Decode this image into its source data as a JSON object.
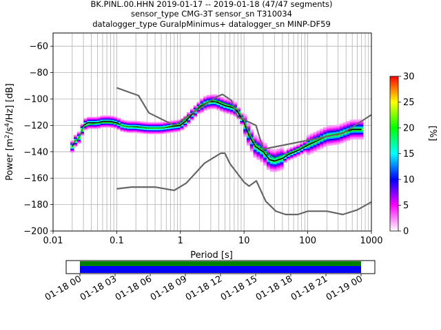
{
  "chart_data": {
    "type": "heatmap",
    "title": [
      "BK.PINL.00.HHN   2019-01-17 -- 2019-01-18  (47/47 segments)",
      "sensor_type CMG-3T sensor_sn T310034",
      "datalogger_type GuralpMinimus+ datalogger_sn MINP-DF59"
    ],
    "xlabel": "Period [s]",
    "ylabel_parts": [
      "Power [m",
      "2",
      "/s",
      "4",
      "/Hz] [dB]"
    ],
    "x_scale": "log",
    "xlim": [
      0.01,
      1000
    ],
    "ylim": [
      -200,
      -50
    ],
    "xticks": [
      {
        "v": 0.01,
        "label": "0.01"
      },
      {
        "v": 0.1,
        "label": "0.1"
      },
      {
        "v": 1,
        "label": "1"
      },
      {
        "v": 10,
        "label": "10"
      },
      {
        "v": 100,
        "label": "100"
      },
      {
        "v": 1000,
        "label": "1000"
      }
    ],
    "yticks": [
      -60,
      -80,
      -100,
      -120,
      -140,
      -160,
      -180,
      -200
    ],
    "grid": true,
    "colorbar": {
      "label": "[%]",
      "range": [
        0,
        30
      ],
      "ticks": [
        0,
        5,
        10,
        15,
        20,
        25,
        30
      ],
      "colormap": [
        "#ffffff",
        "#ff00ff",
        "#0000ff",
        "#00ffff",
        "#00ff00",
        "#ffff00",
        "#ff0000"
      ]
    },
    "series": [
      {
        "role": "mode",
        "color": "#000000",
        "points": [
          [
            0.02,
            -136
          ],
          [
            0.022,
            -132
          ],
          [
            0.025,
            -130
          ],
          [
            0.028,
            -125
          ],
          [
            0.03,
            -120
          ],
          [
            0.035,
            -118
          ],
          [
            0.04,
            -118
          ],
          [
            0.05,
            -118
          ],
          [
            0.06,
            -117
          ],
          [
            0.07,
            -117
          ],
          [
            0.08,
            -117
          ],
          [
            0.1,
            -118
          ],
          [
            0.12,
            -120
          ],
          [
            0.15,
            -121
          ],
          [
            0.2,
            -121
          ],
          [
            0.3,
            -122
          ],
          [
            0.4,
            -122
          ],
          [
            0.5,
            -122
          ],
          [
            0.7,
            -121
          ],
          [
            1.0,
            -120
          ],
          [
            1.2,
            -117
          ],
          [
            1.5,
            -112
          ],
          [
            2.0,
            -106
          ],
          [
            2.5,
            -103
          ],
          [
            3.0,
            -102
          ],
          [
            3.5,
            -102
          ],
          [
            4.0,
            -103
          ],
          [
            5.0,
            -105
          ],
          [
            6.0,
            -106
          ],
          [
            7.0,
            -107
          ],
          [
            8.0,
            -110
          ],
          [
            10,
            -118
          ],
          [
            12,
            -128
          ],
          [
            15,
            -136
          ],
          [
            20,
            -140
          ],
          [
            25,
            -146
          ],
          [
            30,
            -147
          ],
          [
            40,
            -145
          ],
          [
            50,
            -142
          ],
          [
            70,
            -139
          ],
          [
            100,
            -135
          ],
          [
            150,
            -131
          ],
          [
            200,
            -128
          ],
          [
            300,
            -127
          ],
          [
            500,
            -123
          ],
          [
            700,
            -123
          ]
        ]
      },
      {
        "role": "mean",
        "color": "#00cc00",
        "points": [
          [
            0.02,
            -134
          ],
          [
            0.025,
            -130
          ],
          [
            0.03,
            -121
          ],
          [
            0.04,
            -119
          ],
          [
            0.06,
            -118
          ],
          [
            0.08,
            -118
          ],
          [
            0.1,
            -119
          ],
          [
            0.15,
            -121
          ],
          [
            0.3,
            -122
          ],
          [
            0.5,
            -122
          ],
          [
            1.0,
            -119
          ],
          [
            1.5,
            -111
          ],
          [
            2.0,
            -105
          ],
          [
            3.0,
            -101
          ],
          [
            4.0,
            -102
          ],
          [
            6.0,
            -105
          ],
          [
            8.0,
            -108
          ],
          [
            10,
            -116
          ],
          [
            12,
            -126
          ],
          [
            15,
            -134
          ],
          [
            20,
            -139
          ],
          [
            30,
            -145
          ],
          [
            50,
            -141
          ],
          [
            100,
            -134
          ],
          [
            200,
            -128
          ],
          [
            500,
            -124
          ],
          [
            700,
            -124
          ]
        ]
      },
      {
        "role": "NHNM",
        "color": "#666666",
        "points": [
          [
            0.1,
            -91.5
          ],
          [
            0.22,
            -97.4
          ],
          [
            0.32,
            -110.5
          ],
          [
            0.8,
            -120
          ],
          [
            3.8,
            -98
          ],
          [
            4.6,
            -96.5
          ],
          [
            6.3,
            -101
          ],
          [
            7.9,
            -113.5
          ],
          [
            15.4,
            -120
          ],
          [
            20,
            -138
          ],
          [
            354.8,
            -126
          ],
          [
            1000,
            -112
          ]
        ]
      },
      {
        "role": "NLNM",
        "color": "#666666",
        "points": [
          [
            0.1,
            -168
          ],
          [
            0.17,
            -166.7
          ],
          [
            0.4,
            -166.7
          ],
          [
            0.8,
            -169.2
          ],
          [
            1.24,
            -163.7
          ],
          [
            2.4,
            -148.6
          ],
          [
            4.3,
            -141.1
          ],
          [
            5.0,
            -141.1
          ],
          [
            6.0,
            -149
          ],
          [
            10,
            -163
          ],
          [
            12,
            -166
          ],
          [
            15.6,
            -162
          ],
          [
            21.9,
            -177.5
          ],
          [
            31.6,
            -185
          ],
          [
            45,
            -187.5
          ],
          [
            70,
            -187.5
          ],
          [
            100,
            -185
          ],
          [
            200,
            -185
          ],
          [
            354.8,
            -187.5
          ],
          [
            600,
            -184
          ],
          [
            1000,
            -178
          ]
        ]
      }
    ]
  },
  "timeline": {
    "tick_labels": [
      "01-18 00",
      "01-18 03",
      "01-18 06",
      "01-18 09",
      "01-18 12",
      "01-18 15",
      "01-18 18",
      "01-18 21",
      "01-19 00"
    ],
    "segments": 47,
    "colors": {
      "top": "#008000",
      "bottom": "#0000ff"
    }
  }
}
